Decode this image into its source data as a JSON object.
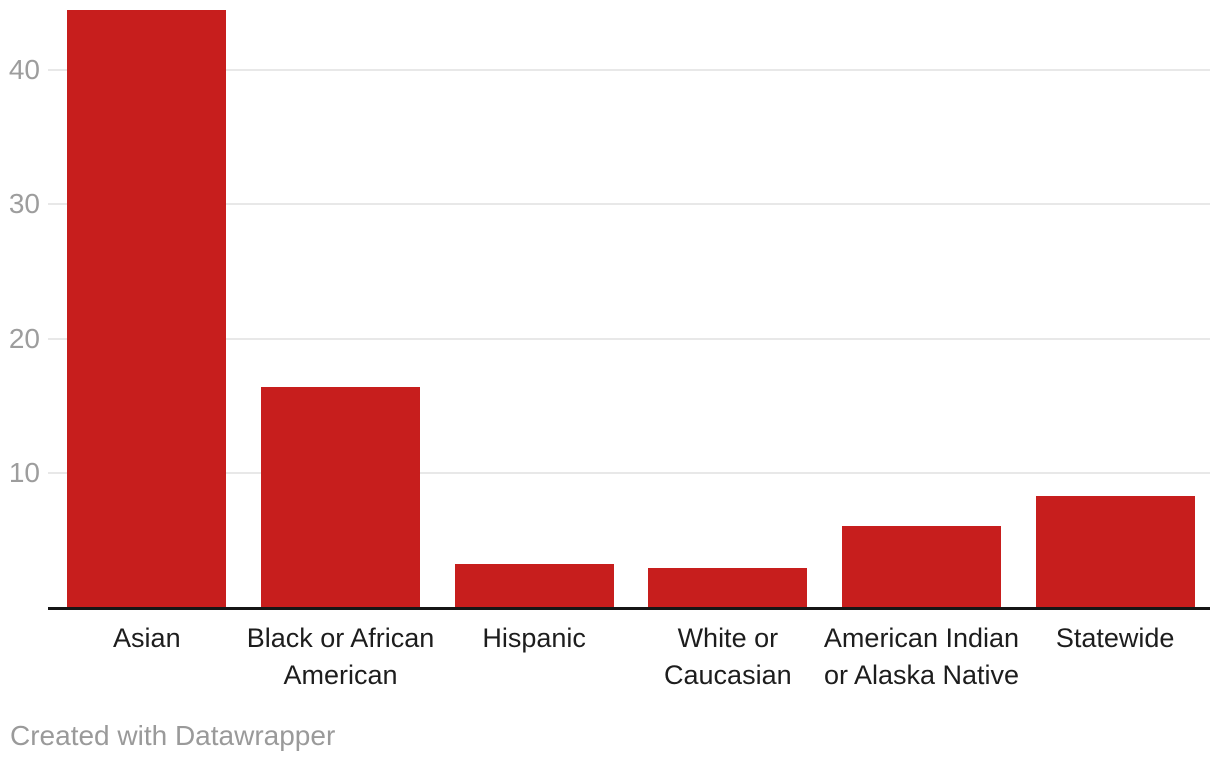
{
  "chart_data": {
    "type": "bar",
    "categories": [
      "Asian",
      "Black or African American",
      "Hispanic",
      "White or Caucasian",
      "American Indian or Alaska Native",
      "Statewide"
    ],
    "category_lines": [
      [
        "Asian"
      ],
      [
        "Black or African",
        "American"
      ],
      [
        "Hispanic"
      ],
      [
        "White or",
        "Caucasian"
      ],
      [
        "American Indian",
        "or Alaska Native"
      ],
      [
        "Statewide"
      ]
    ],
    "values": [
      44.5,
      16.4,
      3.2,
      2.9,
      6.0,
      8.3
    ],
    "yticks": [
      10,
      20,
      30,
      40
    ],
    "ylim": [
      0,
      45.3
    ],
    "title": "",
    "xlabel": "",
    "ylabel": "",
    "legend": "none",
    "grid": "horizontal",
    "colors": {
      "bar": "#c71e1d",
      "gridline": "#e8e8e8",
      "tick_text": "#9d9d9d",
      "category_text": "#1d1d1d",
      "baseline": "#161616"
    }
  },
  "footer": {
    "credit": "Created with Datawrapper"
  }
}
